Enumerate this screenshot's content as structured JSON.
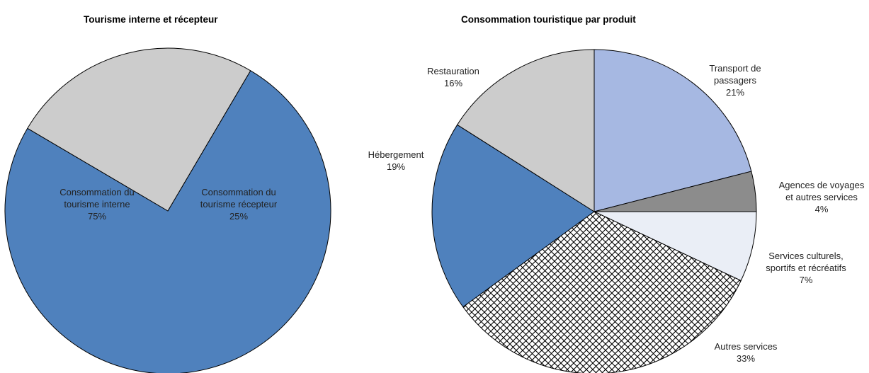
{
  "chart_data": [
    {
      "type": "pie",
      "title": "Tourisme interne et récepteur",
      "slices": [
        {
          "name": "Consommation du tourisme interne",
          "value": 75,
          "color": "#4f81bd",
          "label_lines": [
            "Consommation du",
            "tourisme interne",
            "75%"
          ]
        },
        {
          "name": "Consommation du tourisme récepteur",
          "value": 25,
          "color": "#cccccc",
          "label_lines": [
            "Consommation du",
            "tourisme récepteur",
            "25%"
          ]
        }
      ],
      "unit": "%"
    },
    {
      "type": "pie",
      "title": "Consommation touristique par produit",
      "slices": [
        {
          "name": "Transport de passagers",
          "value": 21,
          "color": "#a6b8e2",
          "label_lines": [
            "Transport de",
            "passagers",
            "21%"
          ]
        },
        {
          "name": "Agences de voyages et autres services",
          "value": 4,
          "color": "#8c8c8c",
          "label_lines": [
            "Agences de voyages",
            "et autres services",
            "4%"
          ]
        },
        {
          "name": "Services culturels, sportifs et récréatifs",
          "value": 7,
          "color": "#eaeef6",
          "label_lines": [
            "Services culturels,",
            "sportifs et récréatifs",
            "7%"
          ]
        },
        {
          "name": "Autres services",
          "value": 33,
          "color": "pattern",
          "label_lines": [
            "Autres services",
            "33%"
          ]
        },
        {
          "name": "Hébergement",
          "value": 19,
          "color": "#4f81bd",
          "label_lines": [
            "Hébergement",
            "19%"
          ]
        },
        {
          "name": "Restauration",
          "value": 16,
          "color": "#cccccc",
          "label_lines": [
            "Restauration",
            "16%"
          ]
        }
      ],
      "unit": "%"
    }
  ]
}
